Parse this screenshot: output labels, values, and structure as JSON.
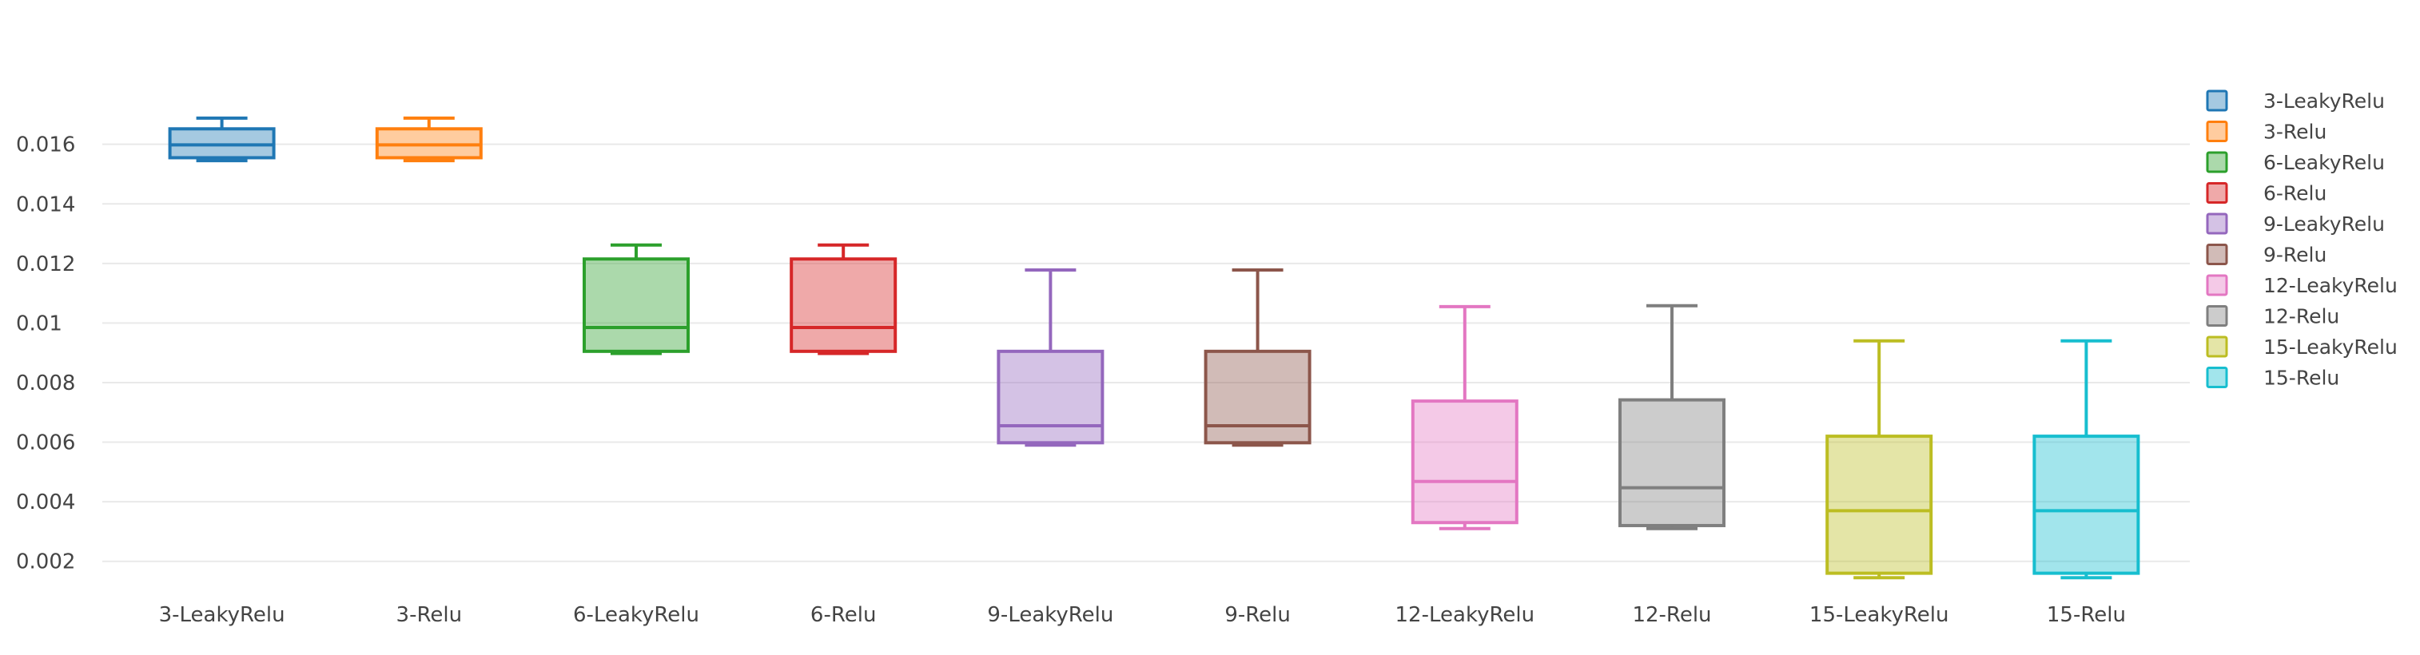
{
  "chart_data": {
    "type": "box",
    "title": "",
    "xlabel": "",
    "ylabel": "",
    "ylim": [
      0.001,
      0.0187
    ],
    "yticks": [
      "0.002",
      "0.004",
      "0.006",
      "0.008",
      "0.01",
      "0.012",
      "0.014",
      "0.016"
    ],
    "grid": true,
    "legend": "top-right",
    "categories": [
      "3-LeakyRelu",
      "3-Relu",
      "6-LeakyRelu",
      "6-Relu",
      "9-LeakyRelu",
      "9-Relu",
      "12-LeakyRelu",
      "12-Relu",
      "15-LeakyRelu",
      "15-Relu"
    ],
    "series": [
      {
        "name": "3-LeakyRelu",
        "color": "#1f77b4",
        "min": 0.01545,
        "q1": 0.01555,
        "median": 0.01598,
        "q3": 0.01652,
        "max": 0.01688
      },
      {
        "name": "3-Relu",
        "color": "#ff7f0e",
        "min": 0.01545,
        "q1": 0.01555,
        "median": 0.01598,
        "q3": 0.01652,
        "max": 0.01688
      },
      {
        "name": "6-LeakyRelu",
        "color": "#2ca02c",
        "min": 0.00898,
        "q1": 0.00905,
        "median": 0.00985,
        "q3": 0.01215,
        "max": 0.01262
      },
      {
        "name": "6-Relu",
        "color": "#d62728",
        "min": 0.00898,
        "q1": 0.00905,
        "median": 0.00985,
        "q3": 0.01215,
        "max": 0.01262
      },
      {
        "name": "9-LeakyRelu",
        "color": "#9467bd",
        "min": 0.0059,
        "q1": 0.00598,
        "median": 0.00655,
        "q3": 0.00905,
        "max": 0.01178
      },
      {
        "name": "9-Relu",
        "color": "#8c564b",
        "min": 0.0059,
        "q1": 0.00598,
        "median": 0.00655,
        "q3": 0.00905,
        "max": 0.01178
      },
      {
        "name": "12-LeakyRelu",
        "color": "#e377c2",
        "min": 0.0031,
        "q1": 0.0033,
        "median": 0.00468,
        "q3": 0.00738,
        "max": 0.01055
      },
      {
        "name": "12-Relu",
        "color": "#7f7f7f",
        "min": 0.0031,
        "q1": 0.0032,
        "median": 0.00447,
        "q3": 0.00742,
        "max": 0.01058
      },
      {
        "name": "15-LeakyRelu",
        "color": "#bcbd22",
        "min": 0.00145,
        "q1": 0.0016,
        "median": 0.0037,
        "q3": 0.0062,
        "max": 0.0094
      },
      {
        "name": "15-Relu",
        "color": "#17becf",
        "min": 0.00145,
        "q1": 0.0016,
        "median": 0.0037,
        "q3": 0.0062,
        "max": 0.0094
      }
    ]
  }
}
